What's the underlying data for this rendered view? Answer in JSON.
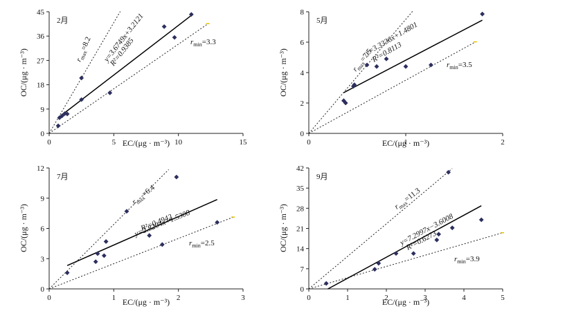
{
  "chart_data": [
    {
      "type": "scatter",
      "panel": "2月",
      "month_label": "2月",
      "xlabel": "EC/(μg · m⁻³)",
      "ylabel": "OC/(μg · m⁻³)",
      "xlim": [
        0,
        15
      ],
      "ylim": [
        0,
        45
      ],
      "xticks": [
        0,
        5,
        10,
        15
      ],
      "yticks": [
        0,
        9,
        18,
        27,
        36,
        45
      ],
      "xtick_labels": [
        "0",
        "5",
        "10",
        "15"
      ],
      "ytick_labels": [
        "0",
        "9",
        "18",
        "27",
        "36",
        "45"
      ],
      "points": [
        [
          0.7,
          2.8
        ],
        [
          0.8,
          5.8
        ],
        [
          1.0,
          6.5
        ],
        [
          1.2,
          7.3
        ],
        [
          1.4,
          7.2
        ],
        [
          2.5,
          12.5
        ],
        [
          2.5,
          20.5
        ],
        [
          4.7,
          15.0
        ],
        [
          8.9,
          39.5
        ],
        [
          9.7,
          35.5
        ],
        [
          11.0,
          44.0
        ]
      ],
      "regression": {
        "slope": 3.6749,
        "intercept": 3.2121,
        "x_range": [
          0.7,
          11.0
        ],
        "equation": "y=3.6749x+3.2121",
        "r2_label": "R²=0.9385"
      },
      "rmax": {
        "value": 8.2,
        "label_r": "r",
        "label_sub": "max",
        "label_val": "=8.2",
        "x_end": 5.5
      },
      "rmin": {
        "value": 3.3,
        "label_r": "r",
        "label_sub": "min",
        "label_val": "=3.3",
        "x_end": 12.3
      }
    },
    {
      "type": "scatter",
      "panel": "5月",
      "month_label": "5月",
      "xlabel": "EC/(μg · m⁻³)",
      "ylabel": "OC/(μg · m⁻³)",
      "xlim": [
        0,
        2
      ],
      "ylim": [
        0,
        8
      ],
      "xticks": [
        0,
        1,
        2
      ],
      "yticks": [
        0,
        2,
        4,
        6,
        8
      ],
      "xtick_labels": [
        "0",
        "1",
        "2"
      ],
      "ytick_labels": [
        "0",
        "2",
        "4",
        "6",
        "8"
      ],
      "points": [
        [
          0.36,
          2.15
        ],
        [
          0.38,
          2.0
        ],
        [
          0.46,
          3.1
        ],
        [
          0.47,
          3.2
        ],
        [
          0.6,
          4.5
        ],
        [
          0.7,
          4.4
        ],
        [
          0.8,
          4.9
        ],
        [
          1.0,
          4.4
        ],
        [
          1.26,
          4.5
        ],
        [
          1.79,
          7.85
        ]
      ],
      "regression": {
        "slope": 3.3336,
        "intercept": 1.4801,
        "x_range": [
          0.36,
          1.79
        ],
        "equation": "y=3.3336x+1.4801",
        "r2_label": "R²=0.8113"
      },
      "rmax": {
        "value": 7.5,
        "label_r": "r",
        "label_sub": "max",
        "label_val": "=7.5",
        "x_end": 1.07
      },
      "rmin": {
        "value": 3.5,
        "label_r": "r",
        "label_sub": "min",
        "label_val": "=3.5",
        "x_end": 1.72
      }
    },
    {
      "type": "scatter",
      "panel": "7月",
      "month_label": "7月",
      "xlabel": "EC/(μg · m⁻³)",
      "ylabel": "OC/(μg · m⁻³)",
      "xlim": [
        0,
        3
      ],
      "ylim": [
        0,
        12
      ],
      "xticks": [
        0,
        1,
        2,
        3
      ],
      "yticks": [
        0,
        3,
        6,
        9,
        12
      ],
      "xtick_labels": [
        "0",
        "1",
        "2",
        "3"
      ],
      "ytick_labels": [
        "0",
        "3",
        "6",
        "9",
        "12"
      ],
      "points": [
        [
          0.28,
          1.6
        ],
        [
          0.72,
          2.7
        ],
        [
          0.75,
          3.5
        ],
        [
          0.85,
          3.3
        ],
        [
          0.88,
          4.7
        ],
        [
          1.2,
          7.7
        ],
        [
          1.55,
          5.3
        ],
        [
          1.75,
          4.4
        ],
        [
          1.97,
          11.1
        ],
        [
          2.6,
          6.6
        ]
      ],
      "regression": {
        "slope": 2.8204,
        "intercept": 1.5308,
        "x_range": [
          0.28,
          2.6
        ],
        "equation": "y=2.8204x+1.5308",
        "r2_label": "R²=0.4942"
      },
      "rmax": {
        "value": 6.4,
        "label_r": "r",
        "label_sub": "max",
        "label_val": "=6.4",
        "x_end": 1.85
      },
      "rmin": {
        "value": 2.5,
        "label_r": "r",
        "label_sub": "min",
        "label_val": "=2.5",
        "x_end": 2.85
      }
    },
    {
      "type": "scatter",
      "panel": "9月",
      "month_label": "9月",
      "xlabel": "EC/(μg · m⁻³)",
      "ylabel": "OC/(μg · m⁻³)",
      "xlim": [
        0,
        5
      ],
      "ylim": [
        0,
        42
      ],
      "xticks": [
        0,
        1,
        2,
        3,
        4,
        5
      ],
      "yticks": [
        0,
        7,
        14,
        21,
        28,
        35,
        42
      ],
      "xtick_labels": [
        "0",
        "1",
        "2",
        "3",
        "4",
        "5"
      ],
      "ytick_labels": [
        "0",
        "7",
        "14",
        "21",
        "28",
        "35",
        "42"
      ],
      "points": [
        [
          0.45,
          1.9
        ],
        [
          1.7,
          6.8
        ],
        [
          1.8,
          8.9
        ],
        [
          2.25,
          12.3
        ],
        [
          2.7,
          12.3
        ],
        [
          3.3,
          17.0
        ],
        [
          3.35,
          19.0
        ],
        [
          3.6,
          40.5
        ],
        [
          3.7,
          21.2
        ],
        [
          4.45,
          24.0
        ]
      ],
      "regression": {
        "slope": 7.2997,
        "intercept": -3.6008,
        "x_range": [
          0.49,
          4.45
        ],
        "equation": "y=7.2997x−3.6008",
        "r2_label": "R²=0.6273"
      },
      "rmax": {
        "value": 11.3,
        "label_r": "r",
        "label_sub": "max",
        "label_val": "=11.3",
        "x_end": 3.7
      },
      "rmin": {
        "value": 3.9,
        "label_r": "r",
        "label_sub": "min",
        "label_val": "=3.9",
        "x_end": 5.0
      }
    }
  ]
}
